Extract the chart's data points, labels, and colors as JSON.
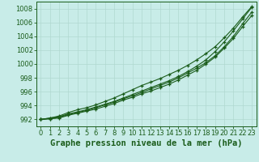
{
  "title": "Graphe pression niveau de la mer (hPa)",
  "x": [
    0,
    1,
    2,
    3,
    4,
    5,
    6,
    7,
    8,
    9,
    10,
    11,
    12,
    13,
    14,
    15,
    16,
    17,
    18,
    19,
    20,
    21,
    22,
    23
  ],
  "line1": [
    992.0,
    992.2,
    992.4,
    992.8,
    993.1,
    993.4,
    993.8,
    994.2,
    994.6,
    995.1,
    995.6,
    996.1,
    996.6,
    997.1,
    997.6,
    998.2,
    998.9,
    999.7,
    1000.6,
    1001.8,
    1003.2,
    1004.8,
    1006.5,
    1008.2
  ],
  "line2": [
    992.0,
    992.2,
    992.5,
    993.0,
    993.4,
    993.7,
    994.1,
    994.6,
    995.1,
    995.7,
    996.3,
    996.9,
    997.4,
    997.9,
    998.5,
    999.1,
    999.8,
    1000.6,
    1001.5,
    1002.5,
    1003.8,
    1005.2,
    1006.8,
    1008.3
  ],
  "line3": [
    992.0,
    992.1,
    992.3,
    992.7,
    993.0,
    993.3,
    993.7,
    994.1,
    994.5,
    995.0,
    995.4,
    995.9,
    996.4,
    996.9,
    997.4,
    998.0,
    998.7,
    999.4,
    1000.2,
    1001.2,
    1002.5,
    1004.0,
    1005.8,
    1007.5
  ],
  "line4": [
    992.0,
    992.1,
    992.2,
    992.6,
    992.9,
    993.2,
    993.5,
    993.9,
    994.3,
    994.8,
    995.2,
    995.7,
    996.1,
    996.6,
    997.1,
    997.7,
    998.4,
    999.1,
    1000.0,
    1001.0,
    1002.3,
    1003.7,
    1005.4,
    1007.0
  ],
  "ylim": [
    991.0,
    1009.0
  ],
  "xlim": [
    -0.5,
    23.5
  ],
  "yticks": [
    992,
    994,
    996,
    998,
    1000,
    1002,
    1004,
    1006,
    1008
  ],
  "xticks": [
    0,
    1,
    2,
    3,
    4,
    5,
    6,
    7,
    8,
    9,
    10,
    11,
    12,
    13,
    14,
    15,
    16,
    17,
    18,
    19,
    20,
    21,
    22,
    23
  ],
  "line_color": "#1a5c1a",
  "bg_color": "#c8ece8",
  "grid_color": "#b0d8d0",
  "title_fontsize": 7.5,
  "tick_fontsize": 6.0,
  "figsize": [
    3.2,
    2.0
  ],
  "dpi": 100
}
